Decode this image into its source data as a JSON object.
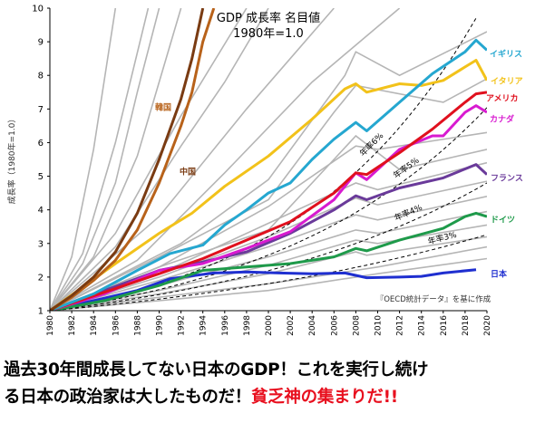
{
  "chart_data": {
    "type": "line",
    "title": "GDP 成長率 名目値",
    "subtitle": "1980年=1.0",
    "ylabel": "成長率（1980年=1.0）",
    "xlabel": "",
    "xlim": [
      1980,
      2020
    ],
    "ylim": [
      1,
      10
    ],
    "x_ticks": [
      1980,
      1982,
      1984,
      1986,
      1988,
      1990,
      1992,
      1994,
      1996,
      1998,
      2000,
      2002,
      2004,
      2006,
      2008,
      2010,
      2012,
      2014,
      2016,
      2018,
      2020
    ],
    "y_ticks": [
      1,
      2,
      3,
      4,
      5,
      6,
      7,
      8,
      9,
      10
    ],
    "source_note": "『OECD統計データ』を基に作成",
    "grid": "none",
    "series": [
      {
        "name": "日本",
        "color": "#1f2fd0",
        "x": [
          1980,
          1984,
          1988,
          1991,
          1995,
          1998,
          2001,
          2004,
          2007,
          2009,
          2012,
          2014,
          2016,
          2019
        ],
        "y": [
          1.0,
          1.3,
          1.6,
          1.95,
          2.12,
          2.15,
          2.12,
          2.1,
          2.12,
          1.98,
          2.0,
          2.02,
          2.12,
          2.22
        ]
      },
      {
        "name": "ドイツ",
        "color": "#1e9a4a",
        "x": [
          1980,
          1985,
          1990,
          1994,
          1998,
          2002,
          2006,
          2008,
          2009,
          2012,
          2016,
          2018,
          2019,
          2020
        ],
        "y": [
          1.0,
          1.3,
          1.75,
          2.2,
          2.3,
          2.4,
          2.6,
          2.85,
          2.78,
          3.1,
          3.45,
          3.8,
          3.9,
          3.8
        ]
      },
      {
        "name": "フランス",
        "color": "#6a3a9a",
        "x": [
          1980,
          1985,
          1990,
          1994,
          1998,
          2002,
          2006,
          2008,
          2009,
          2012,
          2016,
          2019,
          2020
        ],
        "y": [
          1.0,
          1.6,
          2.2,
          2.45,
          2.75,
          3.3,
          4.0,
          4.42,
          4.3,
          4.65,
          4.95,
          5.35,
          5.05
        ]
      },
      {
        "name": "カナダ",
        "color": "#d81ad0",
        "x": [
          1980,
          1985,
          1990,
          1994,
          1998,
          2002,
          2006,
          2008,
          2009,
          2012,
          2015,
          2016,
          2018,
          2019,
          2020
        ],
        "y": [
          1.0,
          1.5,
          2.2,
          2.4,
          2.85,
          3.35,
          4.3,
          5.1,
          4.9,
          5.8,
          6.2,
          6.2,
          6.9,
          7.1,
          6.9
        ]
      },
      {
        "name": "アメリカ",
        "color": "#e0101e",
        "x": [
          1980,
          1985,
          1990,
          1994,
          1998,
          2002,
          2006,
          2008,
          2009,
          2012,
          2015,
          2018,
          2019,
          2020
        ],
        "y": [
          1.0,
          1.55,
          2.1,
          2.55,
          3.1,
          3.65,
          4.5,
          5.1,
          5.05,
          5.7,
          6.4,
          7.2,
          7.45,
          7.5
        ]
      },
      {
        "name": "イタリア",
        "color": "#f2c21a",
        "x": [
          1980,
          1983,
          1986,
          1990,
          1993,
          1996,
          2000,
          2004,
          2007,
          2008,
          2009,
          2012,
          2014,
          2016,
          2018,
          2019,
          2020
        ],
        "y": [
          1.0,
          1.7,
          2.4,
          3.3,
          3.9,
          4.7,
          5.6,
          6.7,
          7.6,
          7.75,
          7.5,
          7.75,
          7.7,
          7.85,
          8.25,
          8.45,
          7.85
        ]
      },
      {
        "name": "イギリス",
        "color": "#25a7d0",
        "x": [
          1980,
          1984,
          1988,
          1991,
          1994,
          1996,
          1998,
          2000,
          2002,
          2004,
          2006,
          2008,
          2009,
          2012,
          2015,
          2018,
          2019,
          2020
        ],
        "y": [
          1.0,
          1.5,
          2.2,
          2.7,
          2.95,
          3.55,
          4.0,
          4.5,
          4.8,
          5.5,
          6.1,
          6.6,
          6.35,
          7.2,
          8.05,
          8.7,
          9.05,
          8.75
        ]
      },
      {
        "name": "韓国",
        "color": "#b8621a",
        "x": [
          1980,
          1982,
          1984,
          1986,
          1988,
          1990,
          1992,
          1993,
          1994,
          1995
        ],
        "y": [
          1.0,
          1.4,
          1.9,
          2.5,
          3.4,
          4.8,
          6.5,
          7.5,
          9.0,
          10.0
        ]
      },
      {
        "name": "中国",
        "color": "#7a3b12",
        "x": [
          1980,
          1982,
          1984,
          1986,
          1988,
          1990,
          1992,
          1993,
          1994
        ],
        "y": [
          1.0,
          1.45,
          2.0,
          2.75,
          3.9,
          5.5,
          7.3,
          8.5,
          10.0
        ]
      }
    ],
    "reference_series": [
      {
        "name": "年率3%",
        "rate": 0.03
      },
      {
        "name": "年率4%",
        "rate": 0.04
      },
      {
        "name": "年率5%",
        "rate": 0.05
      },
      {
        "name": "年率6%",
        "rate": 0.06
      }
    ],
    "background_series": [
      {
        "x": [
          1980,
          1990,
          2000,
          2010,
          2020
        ],
        "y": [
          1.0,
          1.3,
          1.6,
          2.1,
          2.55
        ]
      },
      {
        "x": [
          1980,
          1990,
          2000,
          2010,
          2020
        ],
        "y": [
          1.0,
          1.4,
          1.8,
          2.3,
          2.9
        ]
      },
      {
        "x": [
          1980,
          1990,
          2000,
          2008,
          2009,
          2020
        ],
        "y": [
          1.0,
          1.5,
          2.1,
          2.75,
          2.65,
          3.2
        ]
      },
      {
        "x": [
          1980,
          1990,
          2000,
          2008,
          2010,
          2020
        ],
        "y": [
          1.0,
          1.6,
          2.35,
          3.1,
          3.0,
          3.55
        ]
      },
      {
        "x": [
          1980,
          1990,
          2000,
          2008,
          2010,
          2020
        ],
        "y": [
          1.0,
          1.75,
          2.6,
          3.4,
          3.3,
          3.95
        ]
      },
      {
        "x": [
          1980,
          1990,
          2000,
          2008,
          2010,
          2020
        ],
        "y": [
          1.0,
          1.9,
          2.9,
          3.85,
          3.7,
          4.4
        ]
      },
      {
        "x": [
          1980,
          1990,
          2000,
          2008,
          2010,
          2020
        ],
        "y": [
          1.0,
          2.0,
          3.2,
          4.35,
          4.15,
          4.85
        ]
      },
      {
        "x": [
          1980,
          1990,
          2000,
          2008,
          2010,
          2020
        ],
        "y": [
          1.0,
          2.1,
          3.6,
          4.8,
          4.6,
          5.4
        ]
      },
      {
        "x": [
          1980,
          1990,
          2000,
          2006,
          2008,
          2012,
          2020
        ],
        "y": [
          1.0,
          2.3,
          3.4,
          5.5,
          6.2,
          5.2,
          5.8
        ]
      },
      {
        "x": [
          1980,
          1990,
          2000,
          2008,
          2010,
          2020
        ],
        "y": [
          1.0,
          2.3,
          4.1,
          5.9,
          5.8,
          6.3
        ]
      },
      {
        "x": [
          1980,
          1990,
          2000,
          2006,
          2008,
          2016,
          2020
        ],
        "y": [
          1.0,
          2.6,
          4.3,
          6.9,
          7.7,
          7.2,
          7.9
        ]
      },
      {
        "x": [
          1980,
          1992,
          2000,
          2007,
          2008,
          2012,
          2020
        ],
        "y": [
          1.0,
          3.0,
          4.9,
          8.0,
          8.7,
          8.0,
          9.3
        ]
      },
      {
        "x": [
          1980,
          1988,
          1996,
          2004,
          2012
        ],
        "y": [
          1.0,
          2.5,
          5.1,
          7.8,
          10.0
        ]
      },
      {
        "x": [
          1980,
          1990,
          1998,
          2006
        ],
        "y": [
          1.0,
          3.8,
          7.0,
          10.0
        ]
      },
      {
        "x": [
          1980,
          1986,
          1992,
          1998
        ],
        "y": [
          1.0,
          3.3,
          6.8,
          10.0
        ]
      },
      {
        "x": [
          1980,
          1984,
          1988,
          1992
        ],
        "y": [
          1.0,
          2.6,
          5.6,
          10.0
        ]
      },
      {
        "x": [
          1980,
          1983,
          1986,
          1989
        ],
        "y": [
          1.0,
          2.7,
          6.0,
          10.0
        ]
      },
      {
        "x": [
          1980,
          1982,
          1984,
          1986
        ],
        "y": [
          1.0,
          2.6,
          5.8,
          10.0
        ]
      },
      {
        "x": [
          1980,
          1983,
          1986,
          1988,
          1990
        ],
        "y": [
          1.0,
          2.4,
          4.8,
          7.5,
          10.0
        ]
      },
      {
        "x": [
          1980,
          1986,
          1992,
          1996,
          2000
        ],
        "y": [
          1.0,
          2.9,
          5.9,
          7.8,
          10.0
        ]
      }
    ]
  },
  "caption": {
    "line1": "過去30年間成長してない日本のGDP！これを実行し続け",
    "line2_main": "る日本の政治家は大したものだ！",
    "line2_emph": "貧乏神の集まりだ!!"
  }
}
